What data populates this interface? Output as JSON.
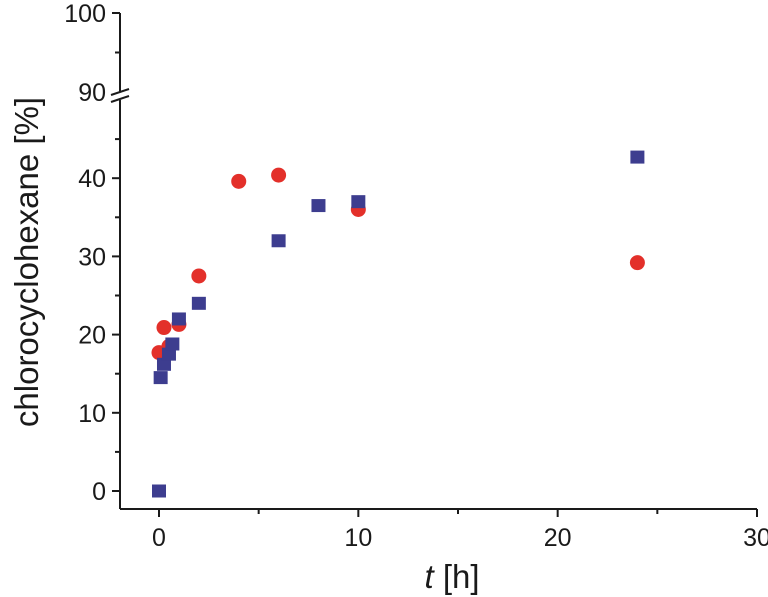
{
  "chart_data": {
    "type": "scatter",
    "title": "",
    "xlabel": "t [h]",
    "xlabel_italic_part": "t",
    "xlabel_rest": " [h]",
    "ylabel": "chlorocyclohexane [%]",
    "xlim": [
      -2,
      30
    ],
    "ylim": [
      -2,
      100
    ],
    "y_axis_break": {
      "lower_max": 50,
      "upper_min": 88,
      "upper_max": 100
    },
    "x_ticks": [
      0,
      10,
      20,
      30
    ],
    "x_tick_labels": [
      "0",
      "10",
      "20",
      "30"
    ],
    "x_minor_ticks": [
      5,
      15,
      25
    ],
    "y_ticks_lower": [
      0,
      10,
      20,
      30,
      40
    ],
    "y_tick_labels_lower": [
      "0",
      "10",
      "20",
      "30",
      "40"
    ],
    "y_minor_ticks_lower": [
      5,
      15,
      25,
      35,
      45
    ],
    "y_ticks_upper": [
      90,
      100
    ],
    "y_tick_labels_upper": [
      "90",
      "100"
    ],
    "y_minor_ticks_upper": [
      95
    ],
    "grid": false,
    "legend": null,
    "series": [
      {
        "name": "series-squares",
        "marker": "square",
        "color": "#3d3d8f",
        "x": [
          0,
          0.083,
          0.25,
          0.5,
          0.67,
          1,
          2,
          6,
          8,
          10,
          24
        ],
        "y": [
          0,
          14.5,
          16.2,
          17.5,
          18.8,
          22.0,
          24.0,
          32.0,
          36.5,
          37.0,
          42.7
        ]
      },
      {
        "name": "series-circles",
        "marker": "circle",
        "color": "#e3302a",
        "x": [
          0,
          0.25,
          0.5,
          1,
          2,
          4,
          6,
          10,
          24
        ],
        "y": [
          17.7,
          20.9,
          18.5,
          21.3,
          27.5,
          39.6,
          40.4,
          36.0,
          29.2
        ]
      }
    ]
  }
}
